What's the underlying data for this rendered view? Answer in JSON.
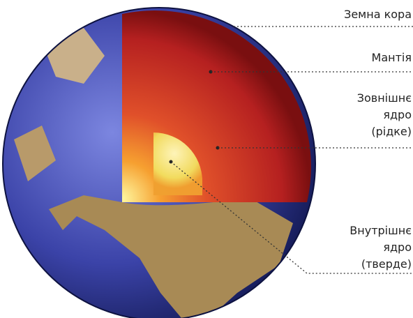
{
  "labels": [
    {
      "lines": [
        "Земна кора"
      ]
    },
    {
      "lines": [
        "Мантія"
      ]
    },
    {
      "lines": [
        "Зовнішнє",
        "ядро",
        "(рідке)"
      ]
    },
    {
      "lines": [
        "Внутрішнє",
        "ядро",
        "(тверде)"
      ]
    }
  ]
}
